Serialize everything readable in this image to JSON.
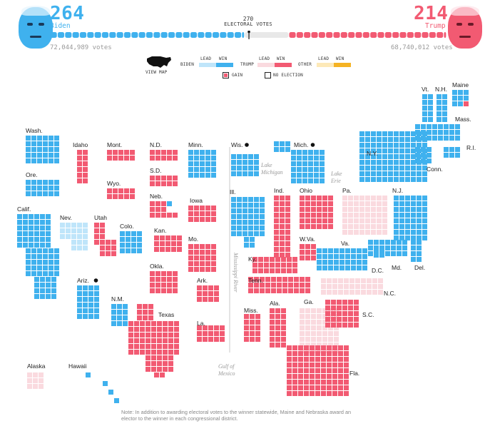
{
  "header": {
    "biden": {
      "ev": "264",
      "name": "Biden",
      "votes": "72,044,989 votes"
    },
    "trump": {
      "ev": "214",
      "name": "Trump",
      "votes": "68,740,012 votes"
    },
    "threshold": {
      "number": "270",
      "label": "ELECTORAL VOTES"
    }
  },
  "legend": {
    "view_map": "VIEW MAP",
    "lead": "LEAD",
    "win": "WIN",
    "biden": "BIDEN",
    "trump": "TRUMP",
    "other": "OTHER",
    "gain": "GAIN",
    "no_election": "NO ELECTION"
  },
  "colors": {
    "biden_win": "#3fb1ee",
    "biden_lead": "#bfe5fa",
    "trump_win": "#f25a72",
    "trump_lead": "#fadadf",
    "other_lead": "#fde9b8",
    "other_win": "#f5b323",
    "undecided": "#e8e8e8"
  },
  "geo_labels": {
    "lake_michigan": "Lake Michigan",
    "lake_erie": "Lake Erie",
    "mississippi": "Mississippi River",
    "gulf": "Gulf of Mexico"
  },
  "note": "Note: In addition to awarding electoral votes to the winner statewide, Maine and Nebraska award an elector to the winner in each congressional district.",
  "chart_data": {
    "type": "table",
    "title": "",
    "totals": {
      "biden_ev": 264,
      "trump_ev": 214,
      "threshold": 270,
      "biden_votes": 72044989,
      "trump_votes": 68740012
    },
    "status_keys": [
      "biden_win",
      "biden_lead",
      "trump_win",
      "trump_lead"
    ],
    "states": [
      {
        "label": "Wash.",
        "status": "biden_win",
        "ev": 12,
        "gain": false
      },
      {
        "label": "Ore.",
        "status": "biden_win",
        "ev": 7,
        "gain": false
      },
      {
        "label": "Calif.",
        "status": "biden_win",
        "ev": 55,
        "gain": false
      },
      {
        "label": "Nev.",
        "status": "biden_lead",
        "ev": 6,
        "gain": false
      },
      {
        "label": "Idaho",
        "status": "trump_win",
        "ev": 4,
        "gain": false
      },
      {
        "label": "Utah",
        "status": "trump_win",
        "ev": 6,
        "gain": false
      },
      {
        "label": "Ariz.",
        "status": "biden_win",
        "ev": 11,
        "gain": true
      },
      {
        "label": "Mont.",
        "status": "trump_win",
        "ev": 3,
        "gain": false
      },
      {
        "label": "Wyo.",
        "status": "trump_win",
        "ev": 3,
        "gain": false
      },
      {
        "label": "Colo.",
        "status": "biden_win",
        "ev": 9,
        "gain": false
      },
      {
        "label": "N.M.",
        "status": "biden_win",
        "ev": 5,
        "gain": false
      },
      {
        "label": "N.D.",
        "status": "trump_win",
        "ev": 3,
        "gain": false
      },
      {
        "label": "S.D.",
        "status": "trump_win",
        "ev": 3,
        "gain": false
      },
      {
        "label": "Neb.",
        "status": "trump_win",
        "ev": 5,
        "gain": false,
        "note": "1 district biden_win"
      },
      {
        "label": "Kan.",
        "status": "trump_win",
        "ev": 6,
        "gain": false
      },
      {
        "label": "Okla.",
        "status": "trump_win",
        "ev": 7,
        "gain": false
      },
      {
        "label": "Texas",
        "status": "trump_win",
        "ev": 38,
        "gain": false
      },
      {
        "label": "Minn.",
        "status": "biden_win",
        "ev": 10,
        "gain": false
      },
      {
        "label": "Iowa",
        "status": "trump_win",
        "ev": 6,
        "gain": false
      },
      {
        "label": "Mo.",
        "status": "trump_win",
        "ev": 10,
        "gain": false
      },
      {
        "label": "Ark.",
        "status": "trump_win",
        "ev": 6,
        "gain": false
      },
      {
        "label": "La.",
        "status": "trump_win",
        "ev": 8,
        "gain": false
      },
      {
        "label": "Wis.",
        "status": "biden_win",
        "ev": 10,
        "gain": true
      },
      {
        "label": "Ill.",
        "status": "biden_win",
        "ev": 20,
        "gain": false
      },
      {
        "label": "Mich.",
        "status": "biden_win",
        "ev": 16,
        "gain": true
      },
      {
        "label": "Ind.",
        "status": "trump_win",
        "ev": 11,
        "gain": false
      },
      {
        "label": "Ohio",
        "status": "trump_win",
        "ev": 18,
        "gain": false
      },
      {
        "label": "Ky.",
        "status": "trump_win",
        "ev": 8,
        "gain": false
      },
      {
        "label": "Tenn.",
        "status": "trump_win",
        "ev": 11,
        "gain": false
      },
      {
        "label": "Miss.",
        "status": "trump_win",
        "ev": 6,
        "gain": false
      },
      {
        "label": "Ala.",
        "status": "trump_win",
        "ev": 9,
        "gain": false
      },
      {
        "label": "Ga.",
        "status": "trump_lead",
        "ev": 16,
        "gain": false
      },
      {
        "label": "Fla.",
        "status": "trump_win",
        "ev": 29,
        "gain": false
      },
      {
        "label": "S.C.",
        "status": "trump_win",
        "ev": 9,
        "gain": false
      },
      {
        "label": "N.C.",
        "status": "trump_lead",
        "ev": 15,
        "gain": false
      },
      {
        "label": "Va.",
        "status": "biden_win",
        "ev": 13,
        "gain": false
      },
      {
        "label": "W.Va.",
        "status": "trump_win",
        "ev": 5,
        "gain": false
      },
      {
        "label": "Pa.",
        "status": "trump_lead",
        "ev": 20,
        "gain": false
      },
      {
        "label": "N.Y.",
        "status": "biden_win",
        "ev": 29,
        "gain": false
      },
      {
        "label": "N.J.",
        "status": "biden_win",
        "ev": 14,
        "gain": false
      },
      {
        "label": "Del.",
        "status": "biden_win",
        "ev": 3,
        "gain": false
      },
      {
        "label": "Md.",
        "status": "biden_win",
        "ev": 10,
        "gain": false
      },
      {
        "label": "D.C.",
        "status": "biden_win",
        "ev": 3,
        "gain": false
      },
      {
        "label": "Conn.",
        "status": "biden_win",
        "ev": 7,
        "gain": false
      },
      {
        "label": "R.I.",
        "status": "biden_win",
        "ev": 4,
        "gain": false
      },
      {
        "label": "Mass.",
        "status": "biden_win",
        "ev": 11,
        "gain": false
      },
      {
        "label": "Vt.",
        "status": "biden_win",
        "ev": 3,
        "gain": false
      },
      {
        "label": "N.H.",
        "status": "biden_win",
        "ev": 4,
        "gain": false
      },
      {
        "label": "Maine",
        "status": "biden_win",
        "ev": 4,
        "gain": false,
        "note": "1 district trump_win"
      },
      {
        "label": "Alaska",
        "status": "trump_lead",
        "ev": 3,
        "gain": false
      },
      {
        "label": "Hawaii",
        "status": "biden_win",
        "ev": 4,
        "gain": false
      }
    ]
  }
}
